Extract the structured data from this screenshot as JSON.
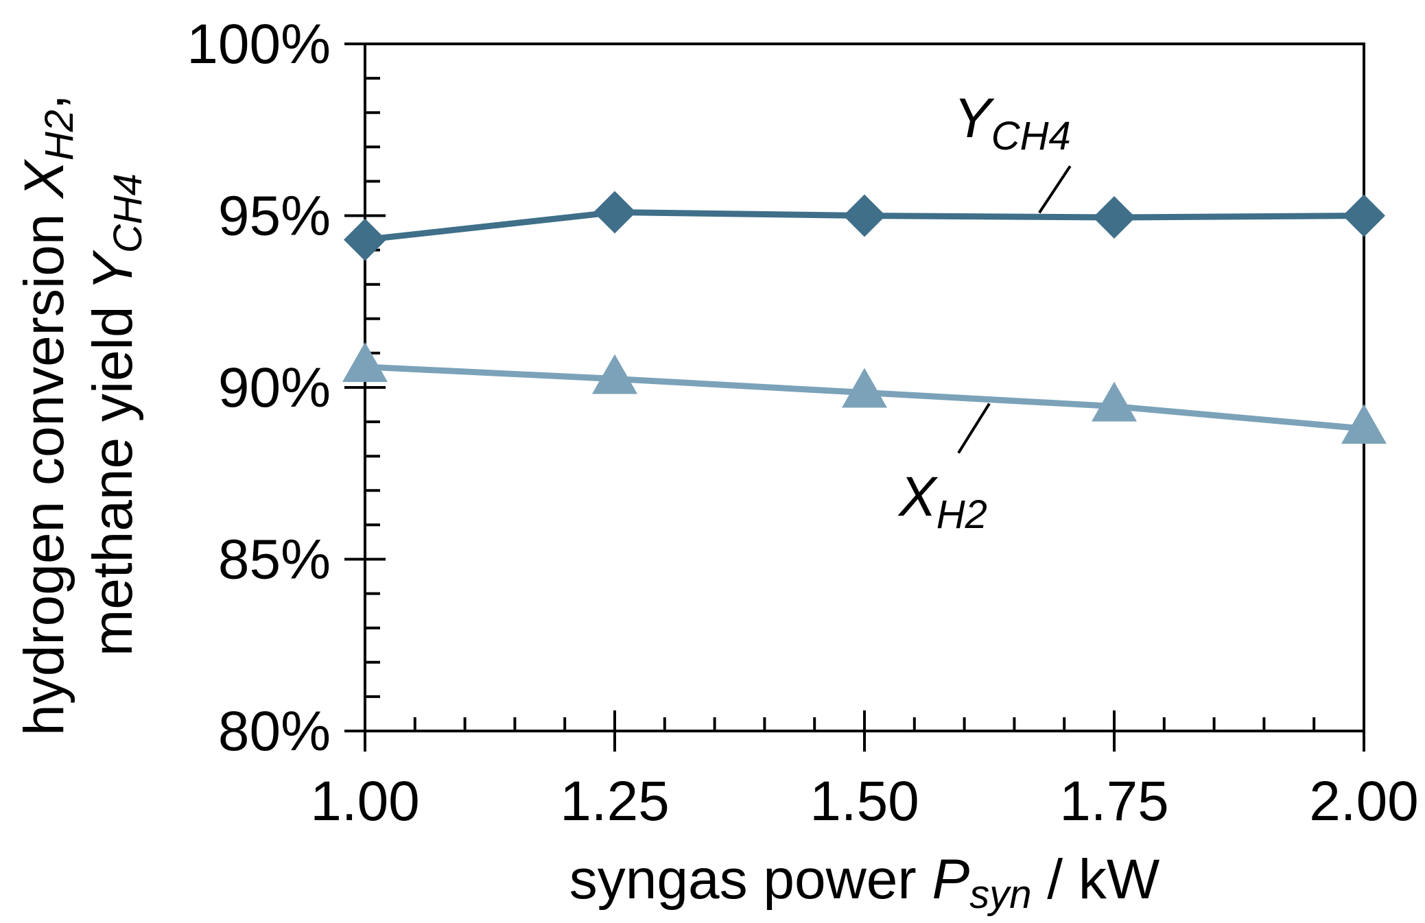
{
  "chart_data": {
    "type": "line",
    "x": [
      1.0,
      1.25,
      1.5,
      1.75,
      2.0
    ],
    "x_tick_labels": [
      "1.00",
      "1.25",
      "1.50",
      "1.75",
      "2.00"
    ],
    "xlim": [
      1.0,
      2.0
    ],
    "ylim": [
      80,
      100
    ],
    "y_ticks": [
      80,
      85,
      90,
      95,
      100
    ],
    "y_tick_labels": [
      "80%",
      "85%",
      "90%",
      "95%",
      "100%"
    ],
    "x_minor_step": 0.05,
    "y_minor_step": 1,
    "xlabel": {
      "main": "syngas power ",
      "var": "P",
      "sub": "syn",
      "unit": " / kW"
    },
    "ylabel": {
      "line1": {
        "main": "hydrogen conversion ",
        "var": "X",
        "sub": "H2",
        "tail": ","
      },
      "line2": {
        "main": "methane yield ",
        "var": "Y",
        "sub": "CH4"
      }
    },
    "series": [
      {
        "name": "Y_CH4",
        "label_var": "Y",
        "label_sub": "CH4",
        "marker": "diamond",
        "color": "#3f6f89",
        "values": [
          94.3,
          95.1,
          95.0,
          94.95,
          95.0
        ]
      },
      {
        "name": "X_H2",
        "label_var": "X",
        "label_sub": "H2",
        "marker": "triangle",
        "color": "#7ba2b9",
        "values": [
          90.6,
          90.25,
          89.85,
          89.45,
          88.8
        ]
      }
    ],
    "annotations": [
      {
        "series": "Y_CH4",
        "at_x": 1.675,
        "label_x": 1.78,
        "label_y": 97.2
      },
      {
        "series": "X_H2",
        "at_x": 1.625,
        "label_x": 1.55,
        "label_y": 86.8
      }
    ]
  }
}
